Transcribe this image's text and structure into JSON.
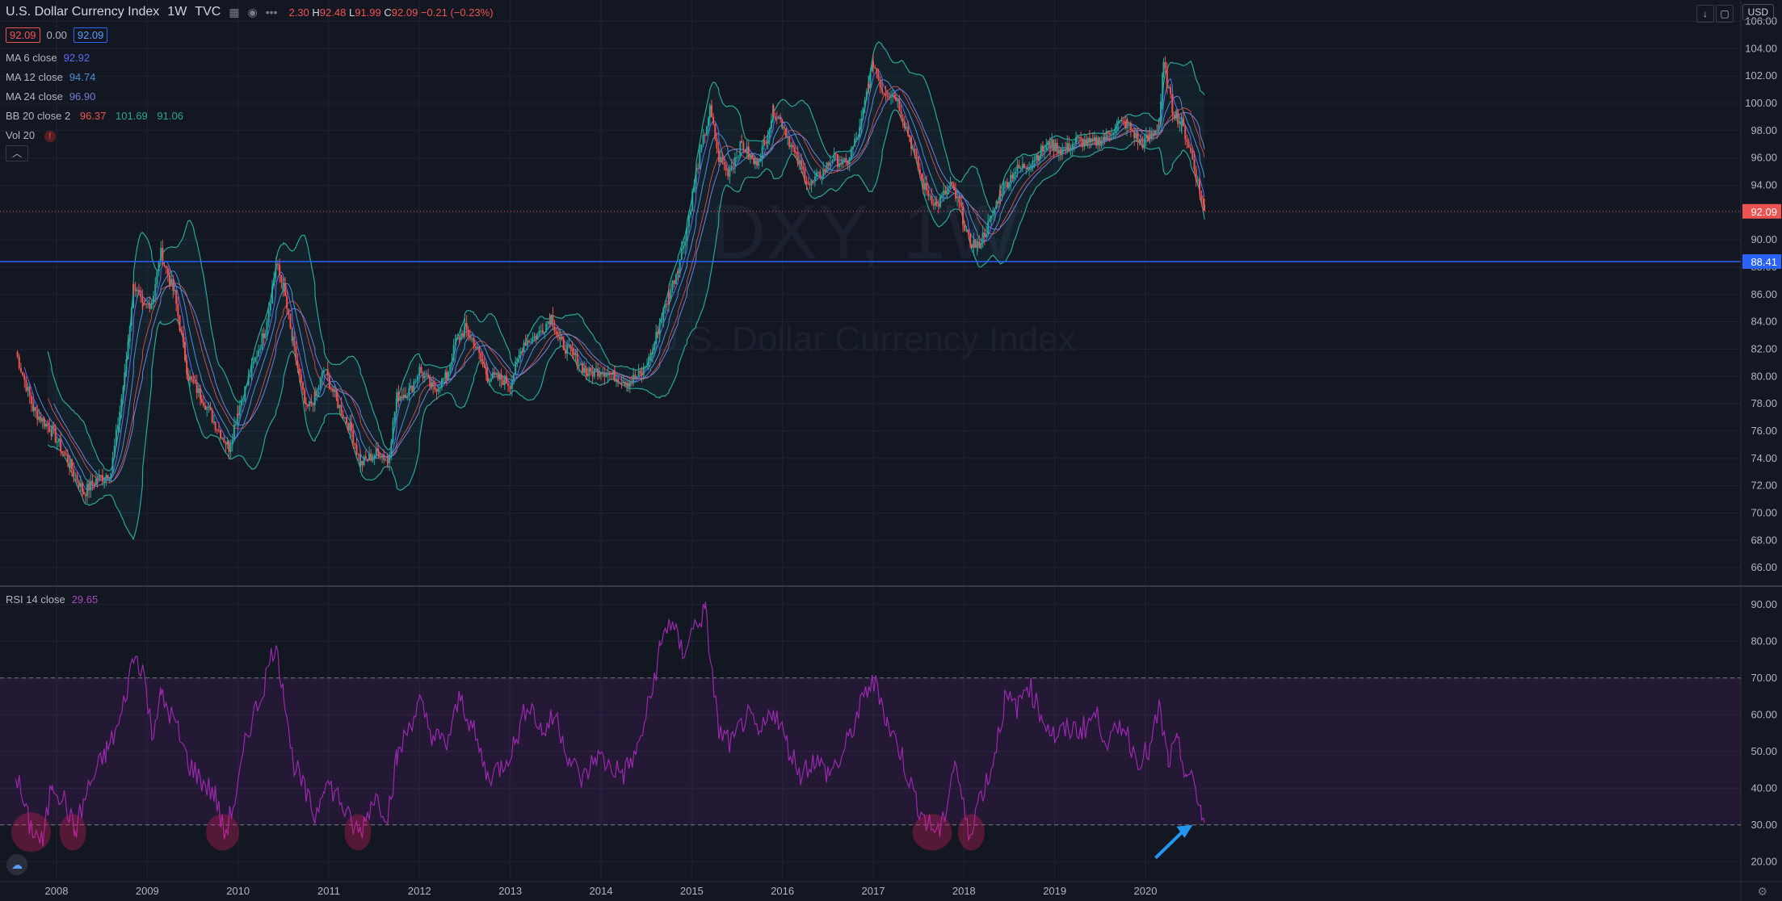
{
  "header": {
    "title": "U.S. Dollar Currency Index",
    "interval": "1W",
    "source": "TVC",
    "ohlc_partial": "2.30",
    "high_label": "H",
    "high": "92.48",
    "low_label": "L",
    "low": "91.99",
    "close_label": "C",
    "close": "92.09",
    "change": "−0.21 (−0.23%)"
  },
  "price_boxes": {
    "bid": "92.09",
    "spread": "0.00",
    "ask": "92.09"
  },
  "indicators": [
    {
      "name": "MA 6 close",
      "values": [
        "92.92"
      ],
      "color": "#5b6cf6"
    },
    {
      "name": "MA 12 close",
      "values": [
        "94.74"
      ],
      "color": "#4c8fd4"
    },
    {
      "name": "MA 24 close",
      "values": [
        "96.90"
      ],
      "color": "#6f7fd9"
    },
    {
      "name": "BB 20 close 2",
      "values": [
        "96.37",
        "101.69",
        "91.06"
      ],
      "color": "#26a69a"
    },
    {
      "name": "Vol 20",
      "values": [
        "!"
      ],
      "color": "#ef5350"
    }
  ],
  "rsi_legend": {
    "name": "RSI 14 close",
    "value": "29.65"
  },
  "watermark": {
    "symbol": "DXY, 1W",
    "name": "U.S. Dollar Currency Index"
  },
  "currency": "USD",
  "icons": [
    "eye-icon",
    "more-icon",
    "chart-type-icon",
    "download-icon",
    "maximize-icon",
    "collapse-icon",
    "settings-icon",
    "logo-icon"
  ],
  "colors": {
    "background": "#131722",
    "up": "#26a69a",
    "down": "#ef5350",
    "rsi": "#9c27b0",
    "current_price": "#ef5350",
    "support_line": "#2962ff"
  },
  "chart_data": [
    {
      "type": "line",
      "title": "U.S. Dollar Currency Index (DXY) weekly",
      "y_axis": {
        "ticks": [
          "106.00",
          "104.00",
          "102.00",
          "100.00",
          "98.00",
          "96.00",
          "94.00",
          "92.00",
          "90.00",
          "88.00",
          "86.00",
          "84.00",
          "82.00",
          "80.00",
          "78.00",
          "76.00",
          "74.00",
          "72.00",
          "70.00",
          "68.00",
          "66.00"
        ],
        "ylim": [
          65,
          106.5
        ]
      },
      "x_ticks": [
        "2008",
        "2009",
        "2010",
        "2011",
        "2012",
        "2013",
        "2014",
        "2015",
        "2016",
        "2017",
        "2018",
        "2019",
        "2020"
      ],
      "series": [
        {
          "values_anchor": [
            [
              2007.55,
              81.8
            ],
            [
              2007.75,
              77.5
            ],
            [
              2007.95,
              76.0
            ],
            [
              2008.15,
              73.5
            ],
            [
              2008.3,
              71.5
            ],
            [
              2008.45,
              72.5
            ],
            [
              2008.6,
              73.0
            ],
            [
              2008.75,
              80
            ],
            [
              2008.85,
              86.8
            ],
            [
              2008.95,
              85.0
            ],
            [
              2009.05,
              85.5
            ],
            [
              2009.15,
              89.0
            ],
            [
              2009.3,
              86
            ],
            [
              2009.45,
              80
            ],
            [
              2009.6,
              78.5
            ],
            [
              2009.75,
              76.5
            ],
            [
              2009.9,
              74.8
            ],
            [
              2010.0,
              77.5
            ],
            [
              2010.15,
              80.5
            ],
            [
              2010.3,
              83.5
            ],
            [
              2010.42,
              88.2
            ],
            [
              2010.5,
              86.5
            ],
            [
              2010.6,
              82.5
            ],
            [
              2010.75,
              77.5
            ],
            [
              2010.85,
              78.5
            ],
            [
              2010.95,
              80.5
            ],
            [
              2011.1,
              78
            ],
            [
              2011.25,
              76
            ],
            [
              2011.35,
              73.6
            ],
            [
              2011.55,
              74.5
            ],
            [
              2011.65,
              73.8
            ],
            [
              2011.75,
              78.5
            ],
            [
              2011.9,
              79
            ],
            [
              2012.0,
              80.5
            ],
            [
              2012.15,
              79
            ],
            [
              2012.3,
              80
            ],
            [
              2012.4,
              82.5
            ],
            [
              2012.5,
              83.5
            ],
            [
              2012.6,
              82.5
            ],
            [
              2012.75,
              80
            ],
            [
              2012.9,
              79.8
            ],
            [
              2013.0,
              79.5
            ],
            [
              2013.15,
              82.5
            ],
            [
              2013.3,
              83
            ],
            [
              2013.45,
              84.4
            ],
            [
              2013.55,
              82.5
            ],
            [
              2013.7,
              81.5
            ],
            [
              2013.85,
              80.2
            ],
            [
              2014.0,
              80.5
            ],
            [
              2014.15,
              80
            ],
            [
              2014.3,
              79.6
            ],
            [
              2014.45,
              80.2
            ],
            [
              2014.55,
              81.5
            ],
            [
              2014.65,
              84
            ],
            [
              2014.75,
              86
            ],
            [
              2014.85,
              88
            ],
            [
              2014.95,
              91
            ],
            [
              2015.05,
              95
            ],
            [
              2015.2,
              99.5
            ],
            [
              2015.3,
              96
            ],
            [
              2015.4,
              95
            ],
            [
              2015.55,
              97
            ],
            [
              2015.7,
              95.5
            ],
            [
              2015.8,
              97
            ],
            [
              2015.9,
              99.5
            ],
            [
              2016.0,
              98.5
            ],
            [
              2016.15,
              96
            ],
            [
              2016.3,
              94
            ],
            [
              2016.45,
              95
            ],
            [
              2016.55,
              96
            ],
            [
              2016.7,
              95.5
            ],
            [
              2016.85,
              98
            ],
            [
              2016.95,
              101.5
            ],
            [
              2017.0,
              103
            ],
            [
              2017.1,
              101
            ],
            [
              2017.25,
              100.5
            ],
            [
              2017.4,
              97.5
            ],
            [
              2017.55,
              94
            ],
            [
              2017.7,
              92.5
            ],
            [
              2017.85,
              94
            ],
            [
              2017.95,
              92.5
            ],
            [
              2018.05,
              90
            ],
            [
              2018.15,
              89.5
            ],
            [
              2018.3,
              91.5
            ],
            [
              2018.4,
              93.5
            ],
            [
              2018.55,
              95
            ],
            [
              2018.7,
              95.5
            ],
            [
              2018.85,
              96.5
            ],
            [
              2018.95,
              97
            ],
            [
              2019.1,
              96.5
            ],
            [
              2019.25,
              97.3
            ],
            [
              2019.4,
              97
            ],
            [
              2019.55,
              97.5
            ],
            [
              2019.7,
              98.5
            ],
            [
              2019.8,
              98.5
            ],
            [
              2019.95,
              97
            ],
            [
              2020.05,
              97.5
            ],
            [
              2020.15,
              98.5
            ],
            [
              2020.2,
              102.8
            ],
            [
              2020.3,
              99.5
            ],
            [
              2020.4,
              98.5
            ],
            [
              2020.5,
              96.5
            ],
            [
              2020.6,
              93.5
            ],
            [
              2020.65,
              92.09
            ]
          ]
        }
      ],
      "current_price": "92.09",
      "horizontal_line": "88.41"
    },
    {
      "type": "line",
      "title": "RSI 14 close",
      "y_axis": {
        "ticks": [
          "90.00",
          "80.00",
          "70.00",
          "60.00",
          "50.00",
          "40.00",
          "30.00",
          "20.00"
        ],
        "ylim": [
          15,
          95
        ]
      },
      "bands": [
        70,
        30
      ],
      "values_anchor": [
        [
          2007.55,
          44
        ],
        [
          2007.7,
          30
        ],
        [
          2007.85,
          25
        ],
        [
          2007.95,
          42
        ],
        [
          2008.1,
          36
        ],
        [
          2008.2,
          28
        ],
        [
          2008.35,
          40
        ],
        [
          2008.55,
          50
        ],
        [
          2008.7,
          58
        ],
        [
          2008.85,
          76
        ],
        [
          2008.95,
          73
        ],
        [
          2009.05,
          55
        ],
        [
          2009.15,
          65
        ],
        [
          2009.3,
          58
        ],
        [
          2009.45,
          47
        ],
        [
          2009.6,
          42
        ],
        [
          2009.75,
          38
        ],
        [
          2009.85,
          27
        ],
        [
          2010.0,
          40
        ],
        [
          2010.1,
          55
        ],
        [
          2010.25,
          65
        ],
        [
          2010.4,
          79
        ],
        [
          2010.5,
          68
        ],
        [
          2010.6,
          48
        ],
        [
          2010.75,
          38
        ],
        [
          2010.85,
          32
        ],
        [
          2010.95,
          42
        ],
        [
          2011.1,
          38
        ],
        [
          2011.25,
          30
        ],
        [
          2011.35,
          28
        ],
        [
          2011.5,
          38
        ],
        [
          2011.65,
          33
        ],
        [
          2011.75,
          48
        ],
        [
          2011.9,
          58
        ],
        [
          2012.0,
          63
        ],
        [
          2012.15,
          54
        ],
        [
          2012.3,
          52
        ],
        [
          2012.45,
          65
        ],
        [
          2012.6,
          55
        ],
        [
          2012.75,
          43
        ],
        [
          2012.9,
          46
        ],
        [
          2013.05,
          52
        ],
        [
          2013.2,
          64
        ],
        [
          2013.35,
          55
        ],
        [
          2013.5,
          60
        ],
        [
          2013.65,
          48
        ],
        [
          2013.8,
          42
        ],
        [
          2013.95,
          49
        ],
        [
          2014.1,
          46
        ],
        [
          2014.25,
          44
        ],
        [
          2014.4,
          50
        ],
        [
          2014.55,
          65
        ],
        [
          2014.65,
          78
        ],
        [
          2014.75,
          86
        ],
        [
          2014.9,
          77
        ],
        [
          2015.05,
          85
        ],
        [
          2015.15,
          88
        ],
        [
          2015.3,
          55
        ],
        [
          2015.45,
          52
        ],
        [
          2015.6,
          60
        ],
        [
          2015.75,
          54
        ],
        [
          2015.9,
          62
        ],
        [
          2016.05,
          52
        ],
        [
          2016.2,
          44
        ],
        [
          2016.35,
          48
        ],
        [
          2016.5,
          44
        ],
        [
          2016.65,
          48
        ],
        [
          2016.8,
          58
        ],
        [
          2016.95,
          68
        ],
        [
          2017.05,
          68
        ],
        [
          2017.15,
          58
        ],
        [
          2017.3,
          50
        ],
        [
          2017.45,
          38
        ],
        [
          2017.6,
          30
        ],
        [
          2017.75,
          28
        ],
        [
          2017.9,
          48
        ],
        [
          2018.05,
          27
        ],
        [
          2018.15,
          36
        ],
        [
          2018.3,
          45
        ],
        [
          2018.45,
          64
        ],
        [
          2018.6,
          62
        ],
        [
          2018.7,
          69
        ],
        [
          2018.85,
          60
        ],
        [
          2019.0,
          54
        ],
        [
          2019.15,
          56
        ],
        [
          2019.3,
          56
        ],
        [
          2019.45,
          60
        ],
        [
          2019.6,
          52
        ],
        [
          2019.75,
          58
        ],
        [
          2019.9,
          48
        ],
        [
          2020.05,
          50
        ],
        [
          2020.15,
          62
        ],
        [
          2020.25,
          47
        ],
        [
          2020.35,
          52
        ],
        [
          2020.45,
          44
        ],
        [
          2020.55,
          40
        ],
        [
          2020.62,
          33
        ],
        [
          2020.65,
          29.65
        ]
      ],
      "oversold_markers": [
        2007.72,
        2008.18,
        2009.83,
        2011.32,
        2017.65,
        2018.08
      ],
      "arrow_annotation": "pointing to latest RSI near 30"
    }
  ]
}
